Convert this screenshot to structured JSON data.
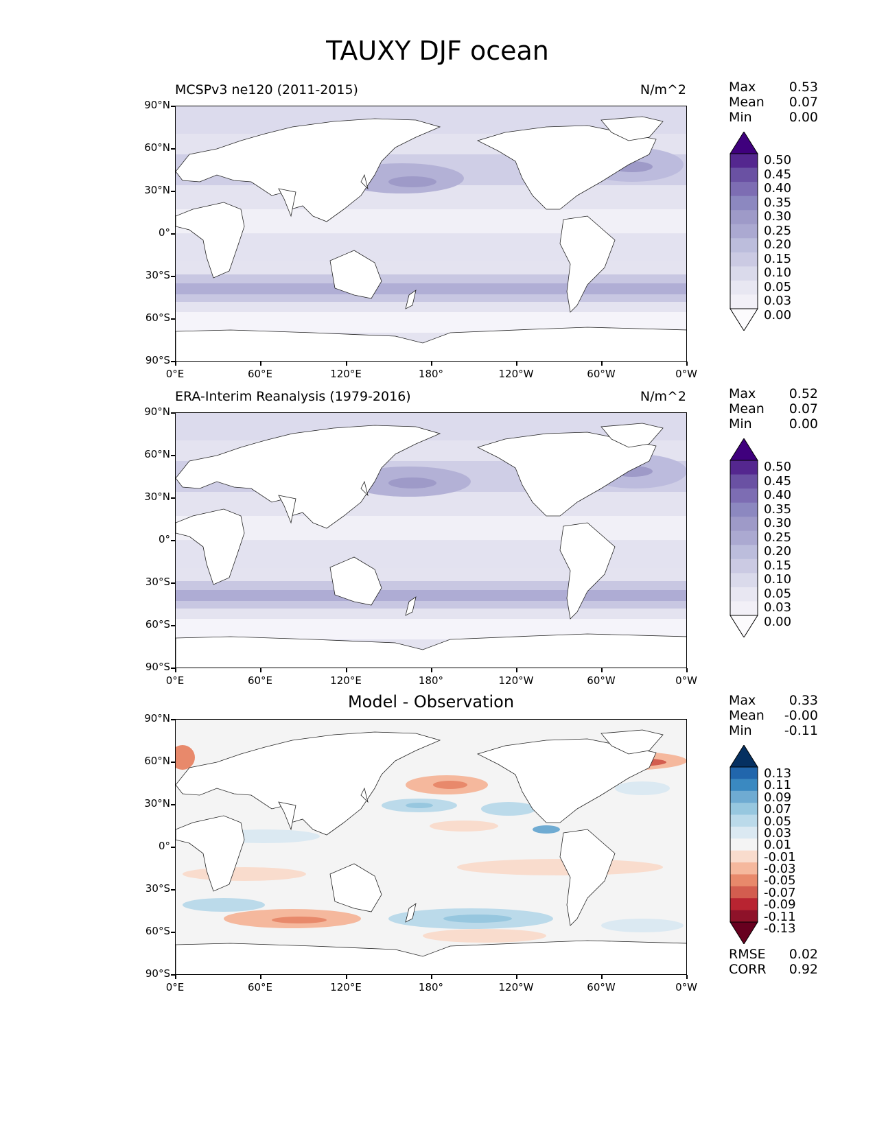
{
  "title": "TAUXY DJF ocean",
  "axes": {
    "lat_labels": [
      "90°N",
      "60°N",
      "30°N",
      "0°",
      "30°S",
      "60°S",
      "90°S"
    ],
    "lon_labels": [
      "0°E",
      "60°E",
      "120°E",
      "180°",
      "120°W",
      "60°W",
      "0°W"
    ]
  },
  "panels": [
    {
      "title_left": "MCSPv3 ne120 (2011-2015)",
      "title_right": "N/m^2",
      "stats": [
        [
          "Max",
          "0.53"
        ],
        [
          "Mean",
          "0.07"
        ],
        [
          "Min",
          "0.00"
        ]
      ],
      "colorbar": {
        "labels": [
          "0.50",
          "0.45",
          "0.40",
          "0.35",
          "0.30",
          "0.25",
          "0.20",
          "0.15",
          "0.10",
          "0.05",
          "0.03",
          "0.00"
        ],
        "colors": [
          "#3f007d",
          "#54278f",
          "#6a51a3",
          "#7d6db3",
          "#8c88c0",
          "#9e9ac8",
          "#aba9d1",
          "#bcbddc",
          "#cbcae3",
          "#dadaeb",
          "#e8e7f2",
          "#f2f0f7",
          "#fcfbfd"
        ]
      }
    },
    {
      "title_left": "ERA-Interim Reanalysis (1979-2016)",
      "title_right": "N/m^2",
      "stats": [
        [
          "Max",
          "0.52"
        ],
        [
          "Mean",
          "0.07"
        ],
        [
          "Min",
          "0.00"
        ]
      ],
      "colorbar": {
        "labels": [
          "0.50",
          "0.45",
          "0.40",
          "0.35",
          "0.30",
          "0.25",
          "0.20",
          "0.15",
          "0.10",
          "0.05",
          "0.03",
          "0.00"
        ],
        "colors": [
          "#3f007d",
          "#54278f",
          "#6a51a3",
          "#7d6db3",
          "#8c88c0",
          "#9e9ac8",
          "#aba9d1",
          "#bcbddc",
          "#cbcae3",
          "#dadaeb",
          "#e8e7f2",
          "#f2f0f7",
          "#fcfbfd"
        ]
      }
    },
    {
      "title_center": "Model - Observation",
      "stats": [
        [
          "Max",
          "0.33"
        ],
        [
          "Mean",
          "-0.00"
        ],
        [
          "Min",
          "-0.11"
        ]
      ],
      "metrics": [
        [
          "RMSE",
          "0.02"
        ],
        [
          "CORR",
          "0.92"
        ]
      ],
      "colorbar": {
        "labels": [
          "0.13",
          "0.11",
          "0.09",
          "0.07",
          "0.05",
          "0.03",
          "0.01",
          "-0.01",
          "-0.03",
          "-0.05",
          "-0.07",
          "-0.09",
          "-0.11",
          "-0.13"
        ],
        "colors": [
          "#053061",
          "#2166ac",
          "#3a89c1",
          "#6fabd2",
          "#97c7df",
          "#bbdaea",
          "#dbe9f2",
          "#f4f4f4",
          "#f9dccd",
          "#f5b89d",
          "#e8896b",
          "#d35d4f",
          "#b82431",
          "#8e1229",
          "#67001f"
        ]
      }
    }
  ]
}
